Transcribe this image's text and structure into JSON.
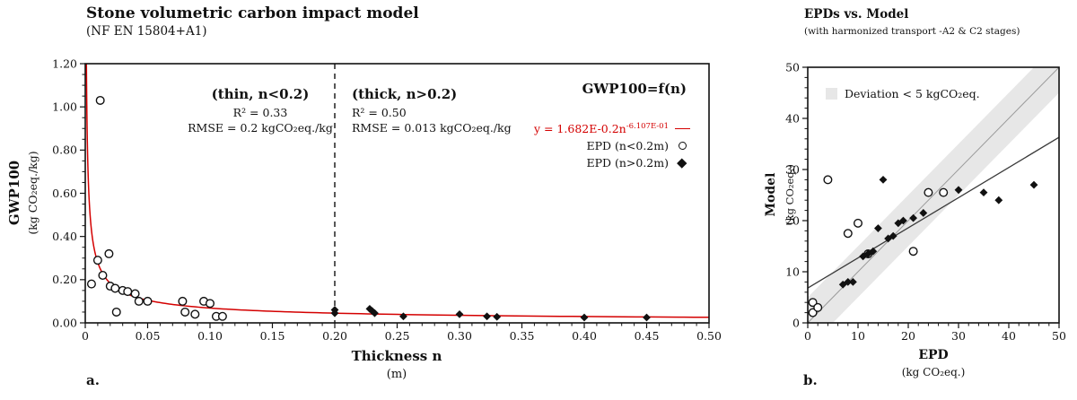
{
  "panel_a": {
    "corner_label": "a.",
    "title": "Stone volumetric carbon impact model",
    "subtitle": "(NF EN 15804+A1)",
    "y_axis_label": "GWP100",
    "y_axis_units": "(kg CO₂eq./kg)",
    "x_axis_label": "Thickness n",
    "x_axis_units": "(m)",
    "thin_block": {
      "title": "(thin, n<0.2)",
      "r2": "R² = 0.33",
      "rmse": "RMSE = 0.2 kgCO₂eq./kg"
    },
    "thick_block": {
      "title": "(thick, n>0.2)",
      "r2": "R² = 0.50",
      "rmse": "RMSE = 0.013 kgCO₂eq./kg"
    },
    "legend": {
      "title": "GWP100=f(n)",
      "equation_base": "y = 1.682E-0.2n",
      "equation_exponent": "-6.107E-01",
      "item_circles": "EPD (n<0.2m)",
      "item_diamonds": "EPD (n>0.2m)"
    }
  },
  "panel_b": {
    "corner_label": "b.",
    "title": "EPDs vs. Model",
    "subtitle": "(with harmonized transport -A2 & C2 stages)",
    "y_axis_label": "Model",
    "y_axis_units": "(kg CO₂eq.)",
    "x_axis_label": "EPD",
    "x_axis_units": "(kg CO₂eq.)",
    "legend_band": "Deviation < 5 kgCO₂eq."
  },
  "colors": {
    "fit_red": "#d40000",
    "band_gray": "#e7e7e7",
    "identity_gray": "#9a9a9a",
    "fit_dark": "#3a3a3a"
  },
  "chart_data": [
    {
      "id": "stone_model_fit",
      "type": "scatter",
      "title": "Stone volumetric carbon impact model (NF EN 15804+A1)",
      "xlabel": "Thickness n (m)",
      "ylabel": "GWP100 (kg CO₂eq./kg)",
      "xlim": [
        0,
        0.5
      ],
      "ylim": [
        0,
        1.2
      ],
      "xticks": [
        0,
        0.05,
        0.1,
        0.15,
        0.2,
        0.25,
        0.3,
        0.35,
        0.4,
        0.45,
        0.5
      ],
      "xtick_labels": [
        "0",
        "0.05",
        "0.10",
        "0.15",
        "0.20",
        "0.25",
        "0.30",
        "0.35",
        "0.40",
        "0.45",
        "0.50"
      ],
      "yticks": [
        0,
        0.2,
        0.4,
        0.6,
        0.8,
        1.0,
        1.2
      ],
      "ytick_labels": [
        "0.00",
        "0.20",
        "0.40",
        "0.60",
        "0.80",
        "1.00",
        "1.20"
      ],
      "x_minor_step": 0.01,
      "y_minor_step": 0.05,
      "divider_x": 0.2,
      "fit": {
        "type": "power",
        "a": 0.01682,
        "b": -0.6107,
        "x_start": 0.0008,
        "x_end": 0.5
      },
      "annotations": {
        "thin": {
          "r2": 0.33,
          "rmse": 0.2
        },
        "thick": {
          "r2": 0.5,
          "rmse": 0.013
        }
      },
      "series": [
        {
          "name": "EPD (n<0.2m)",
          "marker": "circle-open",
          "points": [
            [
              0.012,
              1.03
            ],
            [
              0.005,
              0.18
            ],
            [
              0.01,
              0.29
            ],
            [
              0.014,
              0.22
            ],
            [
              0.019,
              0.32
            ],
            [
              0.02,
              0.17
            ],
            [
              0.024,
              0.16
            ],
            [
              0.025,
              0.05
            ],
            [
              0.03,
              0.15
            ],
            [
              0.034,
              0.145
            ],
            [
              0.04,
              0.135
            ],
            [
              0.043,
              0.1
            ],
            [
              0.05,
              0.1
            ],
            [
              0.078,
              0.1
            ],
            [
              0.08,
              0.05
            ],
            [
              0.088,
              0.04
            ],
            [
              0.095,
              0.1
            ],
            [
              0.1,
              0.09
            ],
            [
              0.105,
              0.03
            ],
            [
              0.11,
              0.03
            ]
          ]
        },
        {
          "name": "EPD (n>0.2m)",
          "marker": "diamond-filled",
          "points": [
            [
              0.2,
              0.06
            ],
            [
              0.2,
              0.045
            ],
            [
              0.228,
              0.065
            ],
            [
              0.23,
              0.055
            ],
            [
              0.232,
              0.045
            ],
            [
              0.255,
              0.03
            ],
            [
              0.3,
              0.04
            ],
            [
              0.322,
              0.03
            ],
            [
              0.33,
              0.028
            ],
            [
              0.4,
              0.025
            ],
            [
              0.45,
              0.025
            ]
          ]
        }
      ]
    },
    {
      "id": "epd_vs_model",
      "type": "scatter",
      "title": "EPDs vs. Model (with harmonized transport -A2 & C2 stages)",
      "xlabel": "EPD (kg CO₂eq.)",
      "ylabel": "Model (kg CO₂eq.)",
      "xlim": [
        0,
        50
      ],
      "ylim": [
        0,
        50
      ],
      "xticks": [
        0,
        10,
        20,
        30,
        40,
        50
      ],
      "xtick_labels": [
        "0",
        "10",
        "20",
        "30",
        "40",
        "50"
      ],
      "yticks": [
        0,
        10,
        20,
        30,
        40,
        50
      ],
      "ytick_labels": [
        "0",
        "10",
        "20",
        "30",
        "40",
        "50"
      ],
      "x_minor_step": 2,
      "y_minor_step": 2,
      "band": {
        "half_width": 5,
        "label": "Deviation < 5 kgCO₂eq."
      },
      "identity_line": true,
      "fit_line": {
        "x": [
          0,
          50
        ],
        "y": [
          6.8,
          36.3
        ]
      },
      "series": [
        {
          "name": "EPD circles",
          "marker": "circle-open",
          "points": [
            [
              1,
              4
            ],
            [
              1,
              2
            ],
            [
              2,
              3
            ],
            [
              4,
              28
            ],
            [
              8,
              17.5
            ],
            [
              10,
              19.5
            ],
            [
              12,
              13.5
            ],
            [
              21,
              14
            ],
            [
              24,
              25.5
            ],
            [
              27,
              25.5
            ]
          ]
        },
        {
          "name": "EPD diamonds",
          "marker": "diamond-filled",
          "points": [
            [
              7,
              7.5
            ],
            [
              8,
              8
            ],
            [
              9,
              8
            ],
            [
              11,
              13
            ],
            [
              12,
              13.5
            ],
            [
              13,
              14
            ],
            [
              14,
              18.5
            ],
            [
              15,
              28
            ],
            [
              16,
              16.5
            ],
            [
              17,
              17
            ],
            [
              18,
              19.5
            ],
            [
              19,
              20
            ],
            [
              21,
              20.5
            ],
            [
              23,
              21.5
            ],
            [
              30,
              26
            ],
            [
              35,
              25.5
            ],
            [
              38,
              24
            ],
            [
              45,
              27
            ]
          ]
        }
      ]
    }
  ]
}
